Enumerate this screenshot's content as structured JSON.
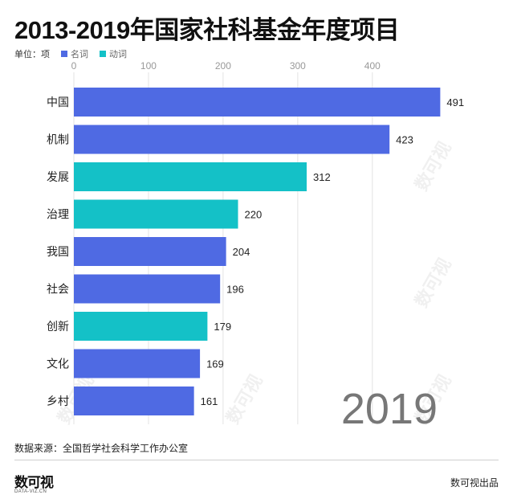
{
  "title": "2013-2019年国家社科基金年度项目",
  "unit_label": "单位：项",
  "legend": [
    {
      "label": "名词",
      "color": "#4f6ae3"
    },
    {
      "label": "动词",
      "color": "#14c1c7"
    }
  ],
  "colors": {
    "noun": "#4f6ae3",
    "verb": "#14c1c7",
    "grid": "#e3e3e3",
    "axis": "#999999"
  },
  "chart_data": {
    "type": "bar",
    "orientation": "horizontal",
    "title": "2013-2019年国家社科基金年度项目",
    "xlim": [
      0,
      500
    ],
    "xticks": [
      0,
      100,
      200,
      300,
      400
    ],
    "grid": true,
    "legend_position": "top-left",
    "categories": [
      "中国",
      "机制",
      "发展",
      "治理",
      "我国",
      "社会",
      "创新",
      "文化",
      "乡村"
    ],
    "values": [
      491,
      423,
      312,
      220,
      204,
      196,
      179,
      169,
      161
    ],
    "groups": [
      "名词",
      "名词",
      "动词",
      "动词",
      "名词",
      "名词",
      "动词",
      "名词",
      "名词"
    ],
    "annotation_year": "2019"
  },
  "source": "数据来源：全国哲学社会科学工作办公室",
  "logo": {
    "main": "数可视",
    "sub": "DATA-VIZ.CN"
  },
  "credit": "数可视出品"
}
